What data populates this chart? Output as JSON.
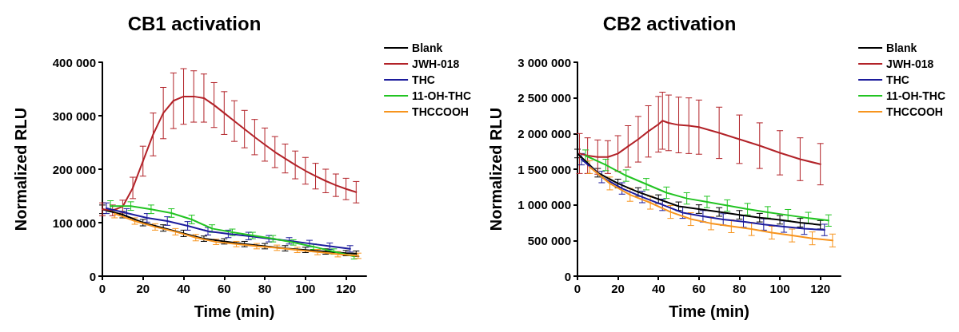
{
  "chart_data": [
    {
      "type": "line",
      "title": "CB1 activation",
      "xlabel": "Time (min)",
      "ylabel": "Normalized RLU",
      "xlim": [
        0,
        130
      ],
      "xticks": [
        0,
        20,
        40,
        60,
        80,
        100,
        120
      ],
      "ylim": [
        0,
        400000
      ],
      "yticks": [
        {
          "value": 0,
          "label": "0"
        },
        {
          "value": 100000,
          "label": "100 000"
        },
        {
          "value": 200000,
          "label": "200 000"
        },
        {
          "value": 300000,
          "label": "300 000"
        },
        {
          "value": 400000,
          "label": "400 000"
        }
      ],
      "grid": false,
      "legend": "top right",
      "marker": "none",
      "line_style": "solid",
      "series": [
        {
          "name": "Blank",
          "color": "#000000",
          "x": [
            0,
            10,
            20,
            30,
            40,
            50,
            60,
            70,
            80,
            90,
            100,
            110,
            120,
            125
          ],
          "values": [
            125000,
            115000,
            100000,
            90000,
            80000,
            70000,
            65000,
            60000,
            56000,
            52000,
            49000,
            46000,
            43000,
            42000
          ],
          "errors": [
            8000,
            6000,
            6000,
            6000,
            6000,
            5000,
            5000,
            5000,
            5000,
            5000,
            5000,
            5000,
            5000,
            5000
          ]
        },
        {
          "name": "JWH-018",
          "color": "#b22228",
          "x": [
            0,
            5,
            10,
            15,
            20,
            25,
            30,
            35,
            40,
            45,
            50,
            55,
            60,
            65,
            70,
            75,
            80,
            85,
            90,
            95,
            100,
            105,
            110,
            115,
            120,
            125
          ],
          "values": [
            125000,
            123000,
            130000,
            165000,
            215000,
            265000,
            305000,
            328000,
            336000,
            336000,
            333000,
            320000,
            305000,
            290000,
            275000,
            260000,
            246000,
            232000,
            220000,
            208000,
            197000,
            187000,
            178000,
            170000,
            163000,
            157000
          ],
          "errors": [
            12000,
            10000,
            12000,
            20000,
            28000,
            40000,
            48000,
            52000,
            52000,
            48000,
            45000,
            42000,
            40000,
            38000,
            35000,
            33000,
            31000,
            29000,
            27000,
            26000,
            25000,
            24000,
            22000,
            21000,
            20000,
            20000
          ]
        },
        {
          "name": "THC",
          "color": "#1c1c9c",
          "x": [
            2,
            12,
            22,
            32,
            42,
            52,
            62,
            72,
            82,
            92,
            102,
            112,
            122
          ],
          "values": [
            127000,
            118000,
            109000,
            103000,
            94000,
            84000,
            79000,
            75000,
            70000,
            66000,
            61000,
            56000,
            51000
          ],
          "errors": [
            10000,
            8000,
            8000,
            8000,
            8000,
            7000,
            7000,
            7000,
            6000,
            6000,
            6000,
            6000,
            6000
          ]
        },
        {
          "name": "11-OH-THC",
          "color": "#22c422",
          "x": [
            4,
            14,
            24,
            34,
            44,
            54,
            64,
            74,
            84,
            94,
            104,
            114,
            124
          ],
          "values": [
            131000,
            131000,
            125000,
            118000,
            106000,
            89000,
            82000,
            76000,
            70000,
            63000,
            55000,
            46000,
            37000
          ],
          "errors": [
            10000,
            8000,
            8000,
            8000,
            8000,
            7000,
            6000,
            6000,
            6000,
            5000,
            5000,
            5000,
            5000
          ]
        },
        {
          "name": "THCCOOH",
          "color": "#f7941d",
          "x": [
            6,
            16,
            26,
            36,
            46,
            56,
            66,
            76,
            86,
            96,
            106,
            116,
            126
          ],
          "values": [
            117000,
            103000,
            92000,
            83000,
            72000,
            64000,
            60000,
            56000,
            53000,
            49000,
            45000,
            41000,
            38000
          ],
          "errors": [
            8000,
            6000,
            6000,
            6000,
            6000,
            5000,
            5000,
            5000,
            5000,
            5000,
            5000,
            5000,
            5000
          ]
        }
      ]
    },
    {
      "type": "line",
      "title": "CB2 activation",
      "xlabel": "Time (min)",
      "ylabel": "Normalized RLU",
      "xlim": [
        0,
        130
      ],
      "xticks": [
        0,
        20,
        40,
        60,
        80,
        100,
        120
      ],
      "ylim": [
        0,
        3000000
      ],
      "yticks": [
        {
          "value": 0,
          "label": "0"
        },
        {
          "value": 500000,
          "label": "500 000"
        },
        {
          "value": 1000000,
          "label": "1 000 000"
        },
        {
          "value": 1500000,
          "label": "1 500 000"
        },
        {
          "value": 2000000,
          "label": "2 000 000"
        },
        {
          "value": 2500000,
          "label": "2 500 000"
        },
        {
          "value": 3000000,
          "label": "3 000 000"
        }
      ],
      "grid": false,
      "legend": "top right",
      "marker": "none",
      "line_style": "solid",
      "series": [
        {
          "name": "Blank",
          "color": "#000000",
          "x": [
            0,
            10,
            20,
            30,
            40,
            50,
            60,
            70,
            80,
            90,
            100,
            110,
            120
          ],
          "values": [
            1720000,
            1450000,
            1300000,
            1180000,
            1080000,
            980000,
            940000,
            900000,
            860000,
            820000,
            790000,
            750000,
            720000
          ],
          "errors": [
            60000,
            60000,
            60000,
            60000,
            60000,
            60000,
            60000,
            60000,
            60000,
            60000,
            60000,
            60000,
            60000
          ]
        },
        {
          "name": "JWH-018",
          "color": "#b22228",
          "x": [
            1,
            5,
            10,
            15,
            20,
            25,
            30,
            35,
            40,
            42,
            45,
            50,
            55,
            60,
            70,
            80,
            90,
            100,
            110,
            120
          ],
          "values": [
            1720000,
            1690000,
            1670000,
            1670000,
            1720000,
            1820000,
            1920000,
            2030000,
            2130000,
            2180000,
            2150000,
            2120000,
            2110000,
            2090000,
            2010000,
            1920000,
            1830000,
            1730000,
            1640000,
            1570000
          ],
          "errors": [
            280000,
            250000,
            240000,
            230000,
            250000,
            290000,
            320000,
            360000,
            390000,
            400000,
            390000,
            390000,
            390000,
            380000,
            360000,
            340000,
            320000,
            310000,
            300000,
            290000
          ]
        },
        {
          "name": "THC",
          "color": "#1c1c9c",
          "x": [
            2,
            12,
            22,
            32,
            42,
            52,
            62,
            72,
            82,
            92,
            102,
            112,
            122
          ],
          "values": [
            1640000,
            1390000,
            1230000,
            1110000,
            1000000,
            890000,
            840000,
            795000,
            765000,
            725000,
            695000,
            665000,
            648000
          ],
          "errors": [
            80000,
            80000,
            80000,
            80000,
            80000,
            80000,
            80000,
            80000,
            80000,
            80000,
            80000,
            80000,
            80000
          ]
        },
        {
          "name": "11-OH-THC",
          "color": "#22c422",
          "x": [
            4,
            14,
            24,
            34,
            44,
            54,
            64,
            74,
            84,
            94,
            104,
            114,
            124
          ],
          "values": [
            1690000,
            1560000,
            1410000,
            1290000,
            1170000,
            1090000,
            1040000,
            990000,
            940000,
            895000,
            855000,
            815000,
            780000
          ],
          "errors": [
            80000,
            80000,
            80000,
            80000,
            80000,
            80000,
            80000,
            80000,
            80000,
            80000,
            80000,
            80000,
            80000
          ]
        },
        {
          "name": "THCCOOH",
          "color": "#f7941d",
          "x": [
            6,
            16,
            26,
            36,
            46,
            56,
            66,
            76,
            86,
            96,
            106,
            116,
            126
          ],
          "values": [
            1530000,
            1300000,
            1140000,
            1030000,
            900000,
            800000,
            740000,
            700000,
            660000,
            610000,
            570000,
            530000,
            500000
          ],
          "errors": [
            90000,
            90000,
            90000,
            90000,
            90000,
            90000,
            90000,
            90000,
            90000,
            90000,
            90000,
            90000,
            90000
          ]
        }
      ]
    }
  ]
}
